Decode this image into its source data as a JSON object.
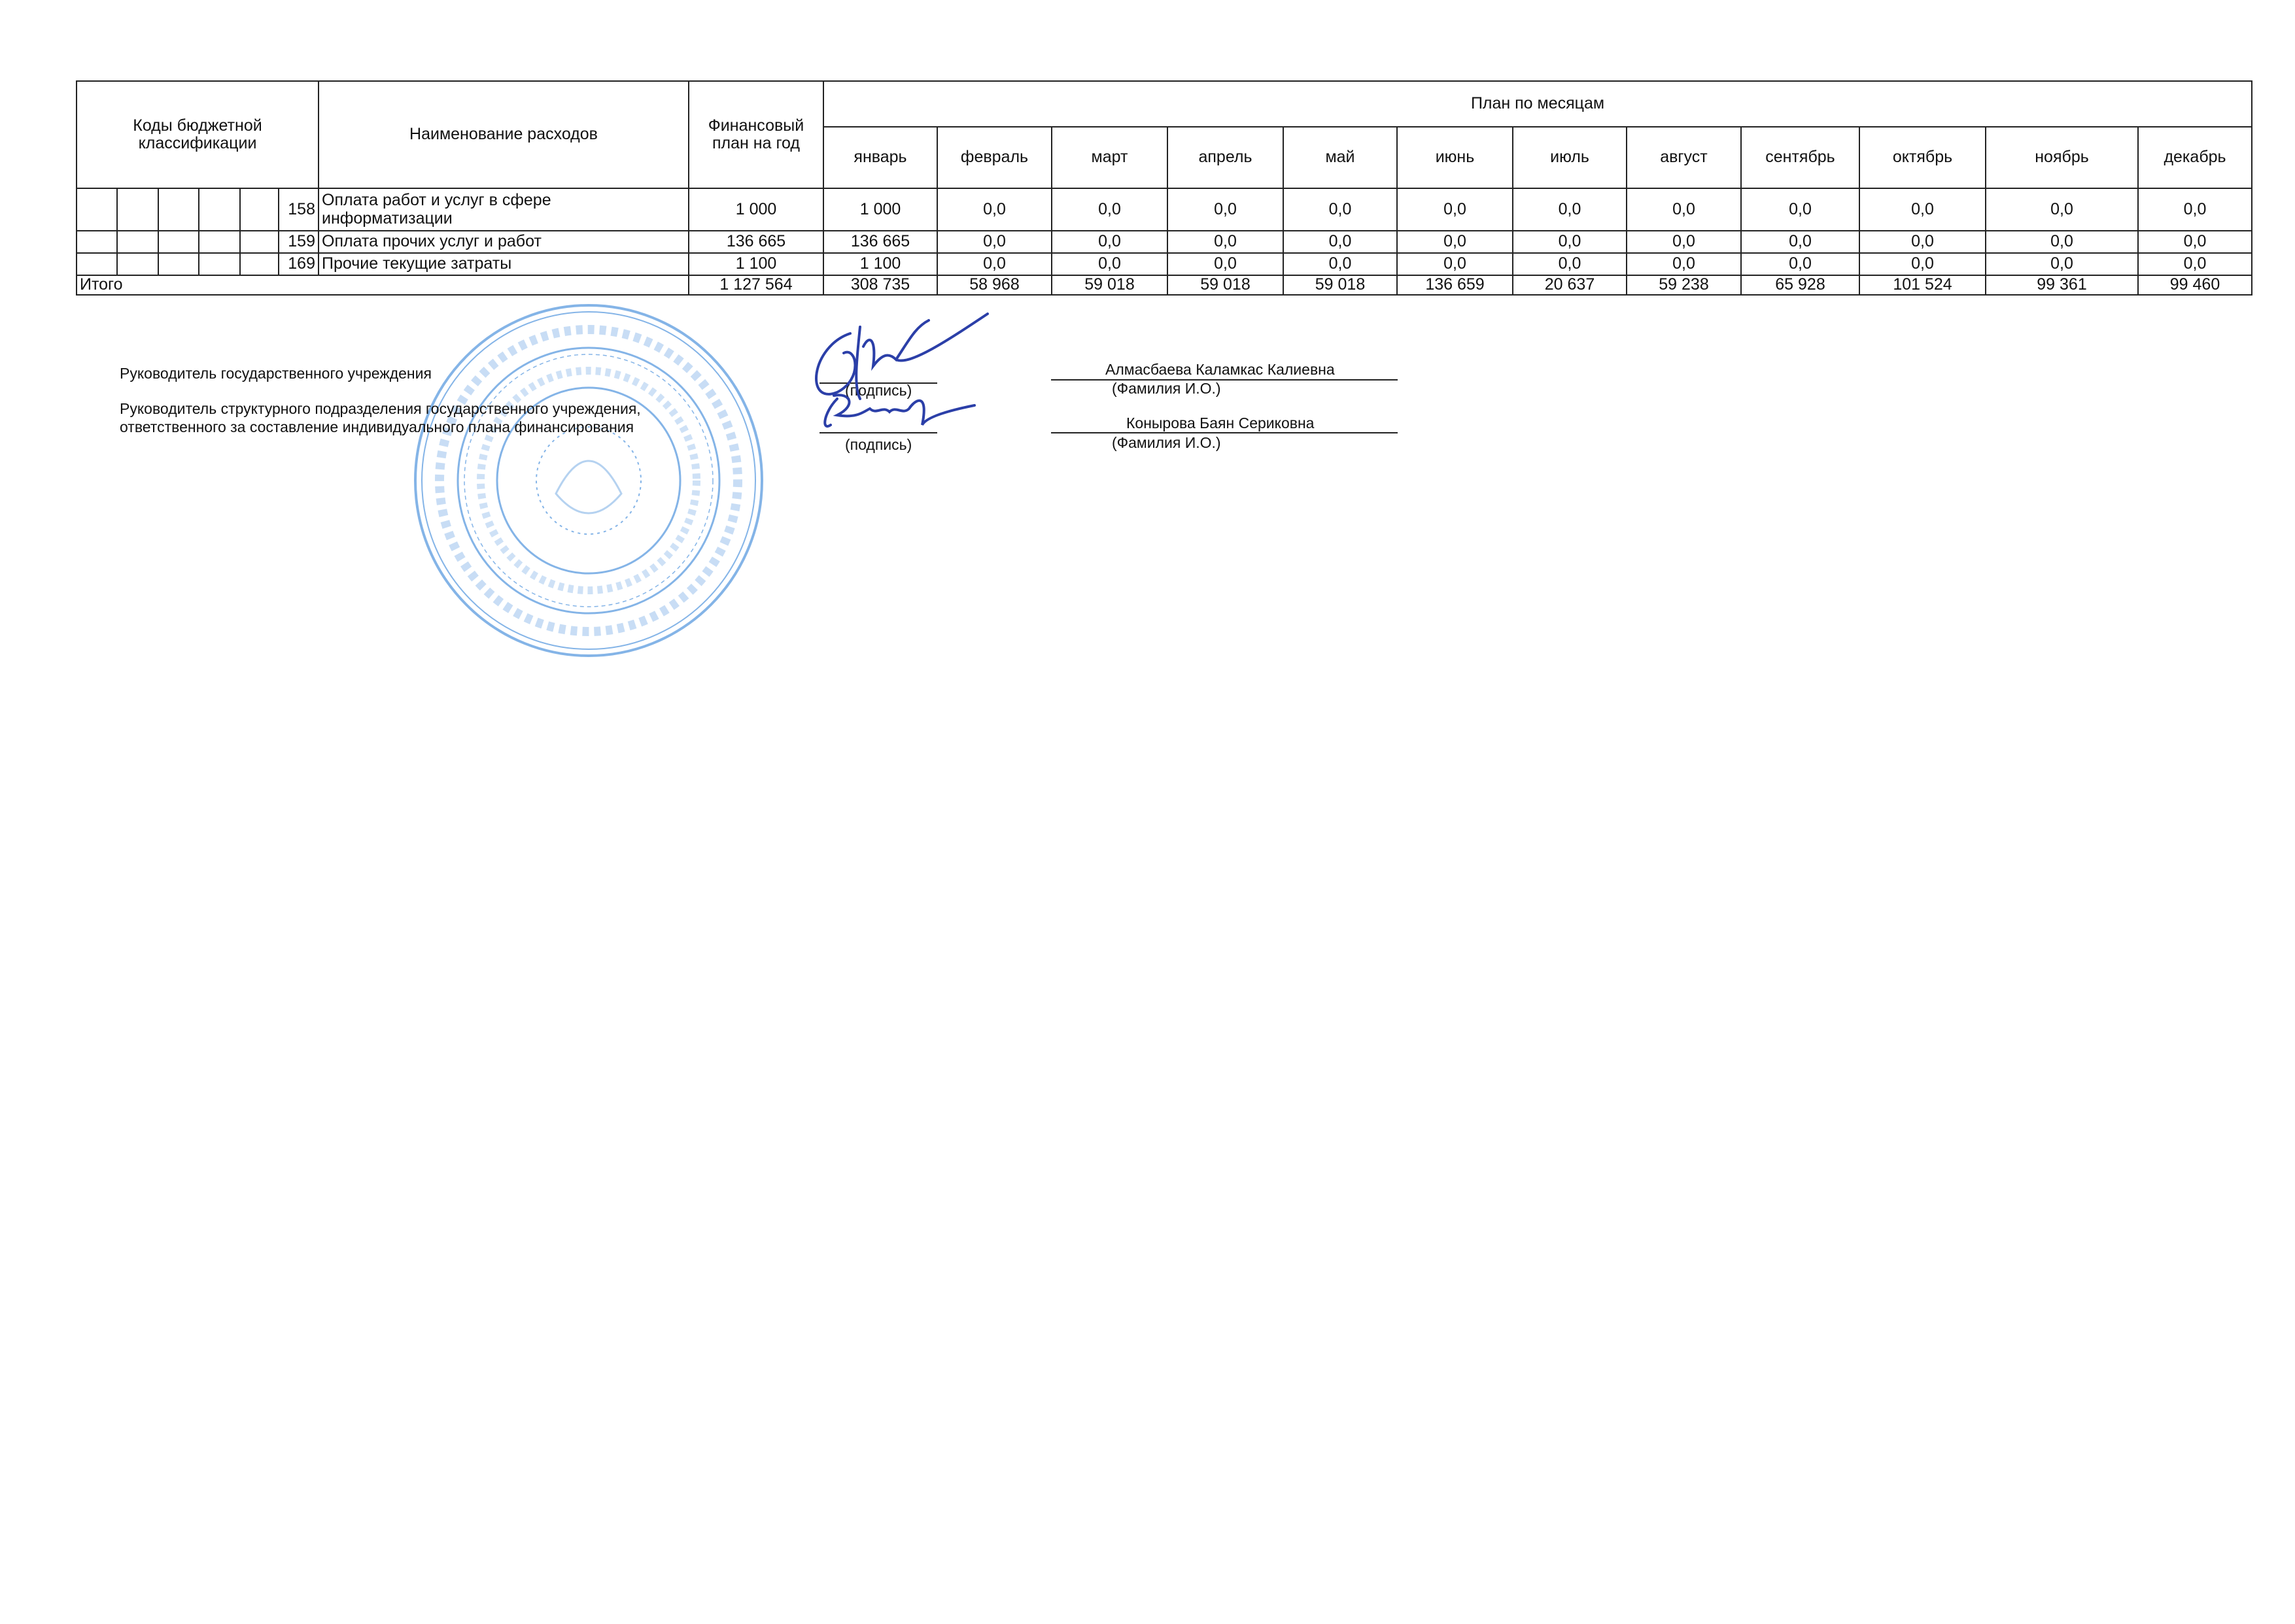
{
  "table": {
    "header": {
      "codes": "Коды бюджетной классификации",
      "name": "Наименование расходов",
      "annual": "Финансовый план на год",
      "monthly_plan": "План по месяцам",
      "months": [
        "январь",
        "февраль",
        "март",
        "апрель",
        "май",
        "июнь",
        "июль",
        "август",
        "сентябрь",
        "октябрь",
        "ноябрь",
        "декабрь"
      ]
    },
    "rows": [
      {
        "code": "158",
        "name": "Оплата работ и услуг в сфере информатизации",
        "annual": "1 000",
        "months": [
          "1 000",
          "0,0",
          "0,0",
          "0,0",
          "0,0",
          "0,0",
          "0,0",
          "0,0",
          "0,0",
          "0,0",
          "0,0",
          "0,0"
        ]
      },
      {
        "code": "159",
        "name": "Оплата прочих услуг и работ",
        "annual": "136 665",
        "months": [
          "136 665",
          "0,0",
          "0,0",
          "0,0",
          "0,0",
          "0,0",
          "0,0",
          "0,0",
          "0,0",
          "0,0",
          "0,0",
          "0,0"
        ]
      },
      {
        "code": "169",
        "name": "Прочие текущие затраты",
        "annual": "1 100",
        "months": [
          "1 100",
          "0,0",
          "0,0",
          "0,0",
          "0,0",
          "0,0",
          "0,0",
          "0,0",
          "0,0",
          "0,0",
          "0,0",
          "0,0"
        ]
      }
    ],
    "total": {
      "label": "Итого",
      "annual": "1 127 564",
      "months": [
        "308 735",
        "58 968",
        "59 018",
        "59 018",
        "59 018",
        "136 659",
        "20 637",
        "59 238",
        "65 928",
        "101 524",
        "99 361",
        "99 460"
      ]
    }
  },
  "signatures": {
    "head_label": "Руководитель государственного учреждения",
    "dept_label_line1": "Руководитель структурного подразделения государственного учреждения,",
    "dept_label_line2": "ответственного за составление индивидуального плана финансирования",
    "signature_caption": "(подпись)",
    "name_caption": "(Фамилия И.О.)",
    "head_name": "Алмасбаева Каламкас Калиевна",
    "dept_name": "Конырова Баян Сериковна"
  },
  "colors": {
    "ink": "#111111",
    "stamp": "#5b9be0",
    "signature": "#2b3fa8"
  }
}
